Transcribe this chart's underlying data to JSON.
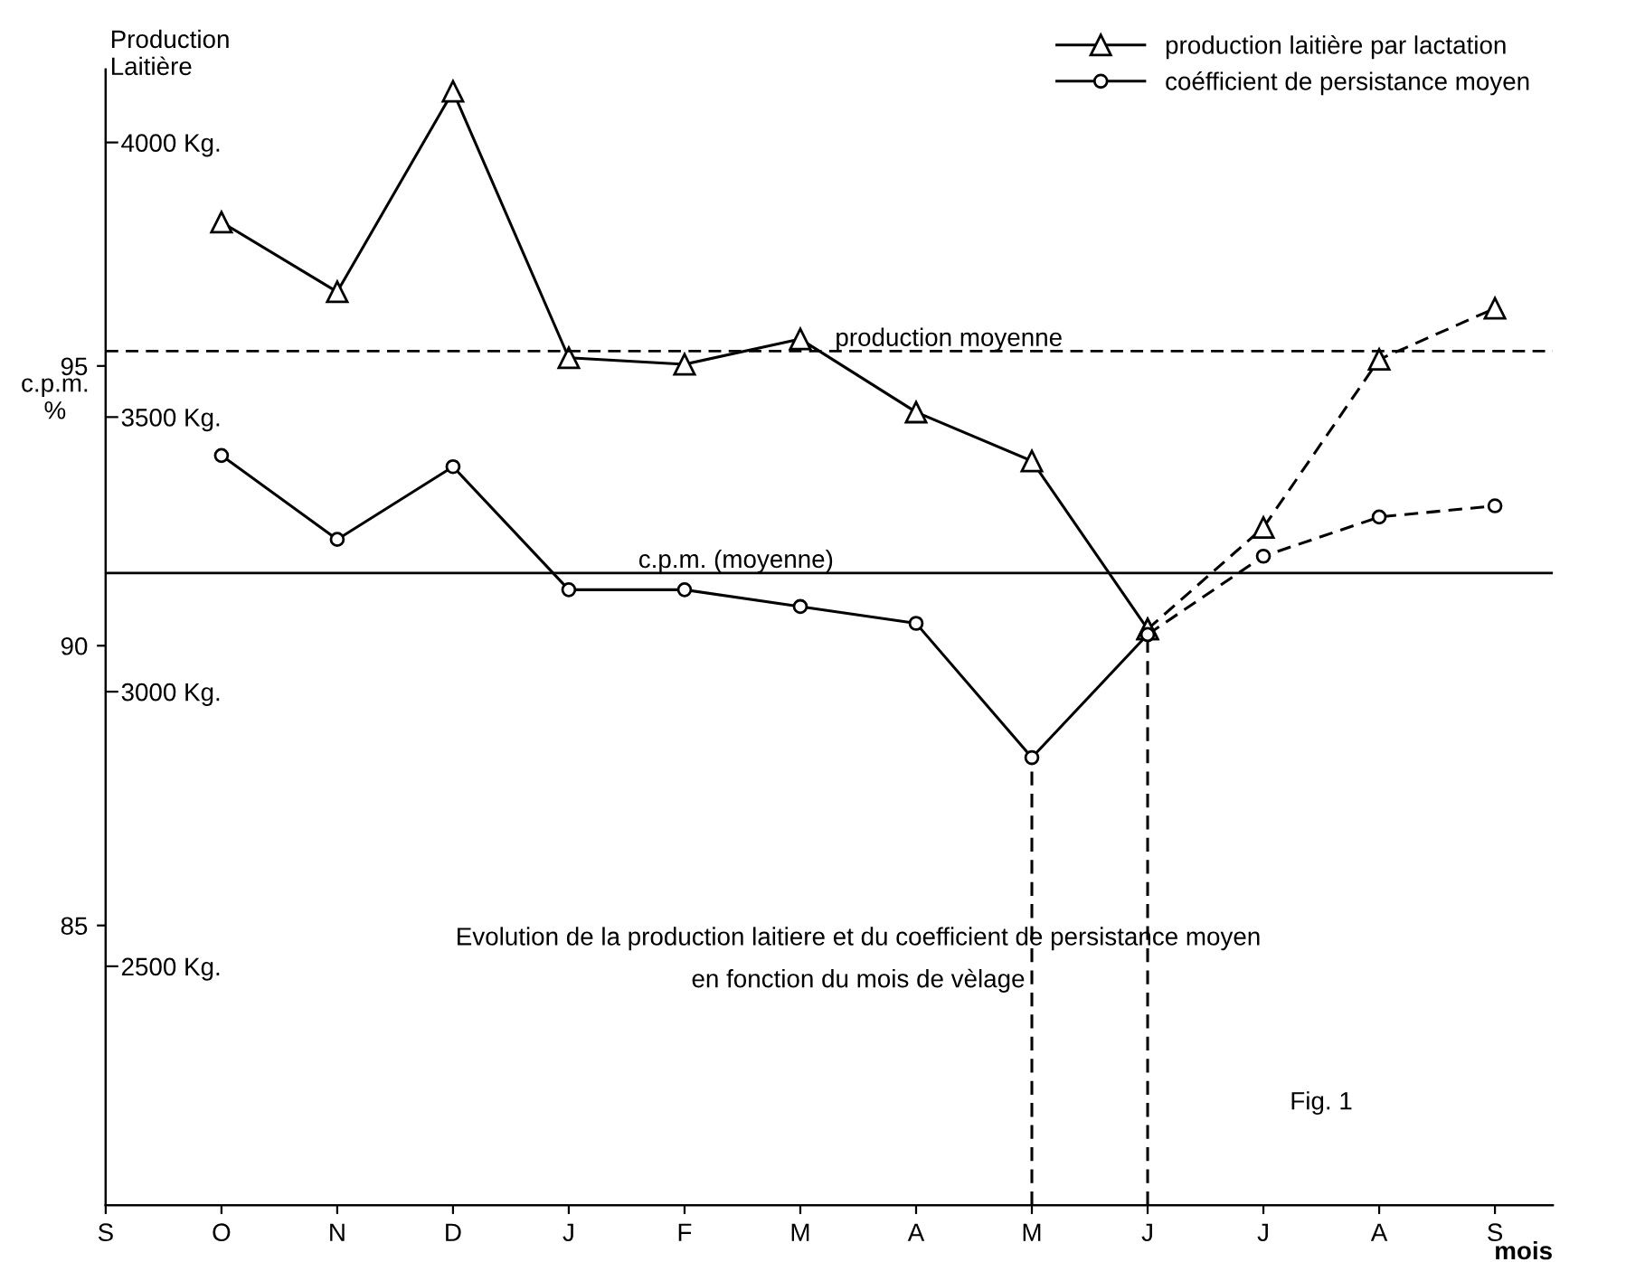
{
  "chart_data": {
    "type": "line",
    "title": "Evolution de la production laitiere et du coefficient de persistance moyen\nen fonction du mois de vèlage",
    "xlabel": "mois",
    "ylabel": "c.p.m.\n%",
    "y2label": "Production\nLaitière",
    "categories": [
      "S",
      "O",
      "N",
      "D",
      "J",
      "F",
      "M",
      "A",
      "M",
      "J",
      "J",
      "A",
      "S"
    ],
    "ylim": [
      80,
      100.3
    ],
    "yticks": [
      85,
      90,
      95
    ],
    "y2lim": [
      2065,
      4133
    ],
    "y2ticks": [
      {
        "value": 2500,
        "label": "2500 Kg."
      },
      {
        "value": 3000,
        "label": "3000 Kg."
      },
      {
        "value": 3500,
        "label": "3500 Kg."
      },
      {
        "value": 4000,
        "label": "4000 Kg."
      }
    ],
    "series": [
      {
        "name": "production laitière par lactation",
        "color": "#000000",
        "axis": "y2",
        "marker": "triangle",
        "line_style": "solid",
        "values": [
          null,
          3855,
          3728,
          4093,
          3608,
          3596,
          3642,
          3509,
          3420,
          3114,
          null,
          null,
          null
        ]
      },
      {
        "name": "coéfficient de persistance moyen",
        "color": "#000000",
        "marker": "circle",
        "line_style": "solid",
        "values": [
          null,
          93.4,
          91.9,
          93.2,
          91.0,
          91.0,
          90.7,
          90.4,
          88.0,
          90.2,
          null,
          null,
          null
        ],
        "errors": [
          null,
          null,
          null,
          null,
          null,
          null,
          null,
          null,
          [
            80,
            88.0
          ],
          [
            80,
            90.2
          ],
          null,
          null,
          null
        ]
      },
      {
        "color": "#000000",
        "axis": "y2",
        "marker": "triangle",
        "line_style": "dashed",
        "values": [
          null,
          null,
          null,
          null,
          null,
          null,
          null,
          null,
          null,
          3114,
          3299,
          3605,
          3698
        ]
      },
      {
        "color": "#000000",
        "marker": "circle",
        "line_style": "dashed",
        "values": [
          null,
          null,
          null,
          null,
          null,
          null,
          null,
          null,
          null,
          90.2,
          91.6,
          92.3,
          92.5
        ]
      }
    ],
    "ref_lines": [
      {
        "axis": "y2",
        "value": 3620,
        "label": "production moyenne",
        "line_style": "dashed",
        "color": "#000000"
      },
      {
        "axis": "y",
        "value": 91.3,
        "label": "c.p.m. (moyenne)",
        "line_style": "solid",
        "color": "#000000"
      }
    ],
    "annotations": [
      "Fig. 1"
    ],
    "legend": "top right",
    "grid": false
  }
}
